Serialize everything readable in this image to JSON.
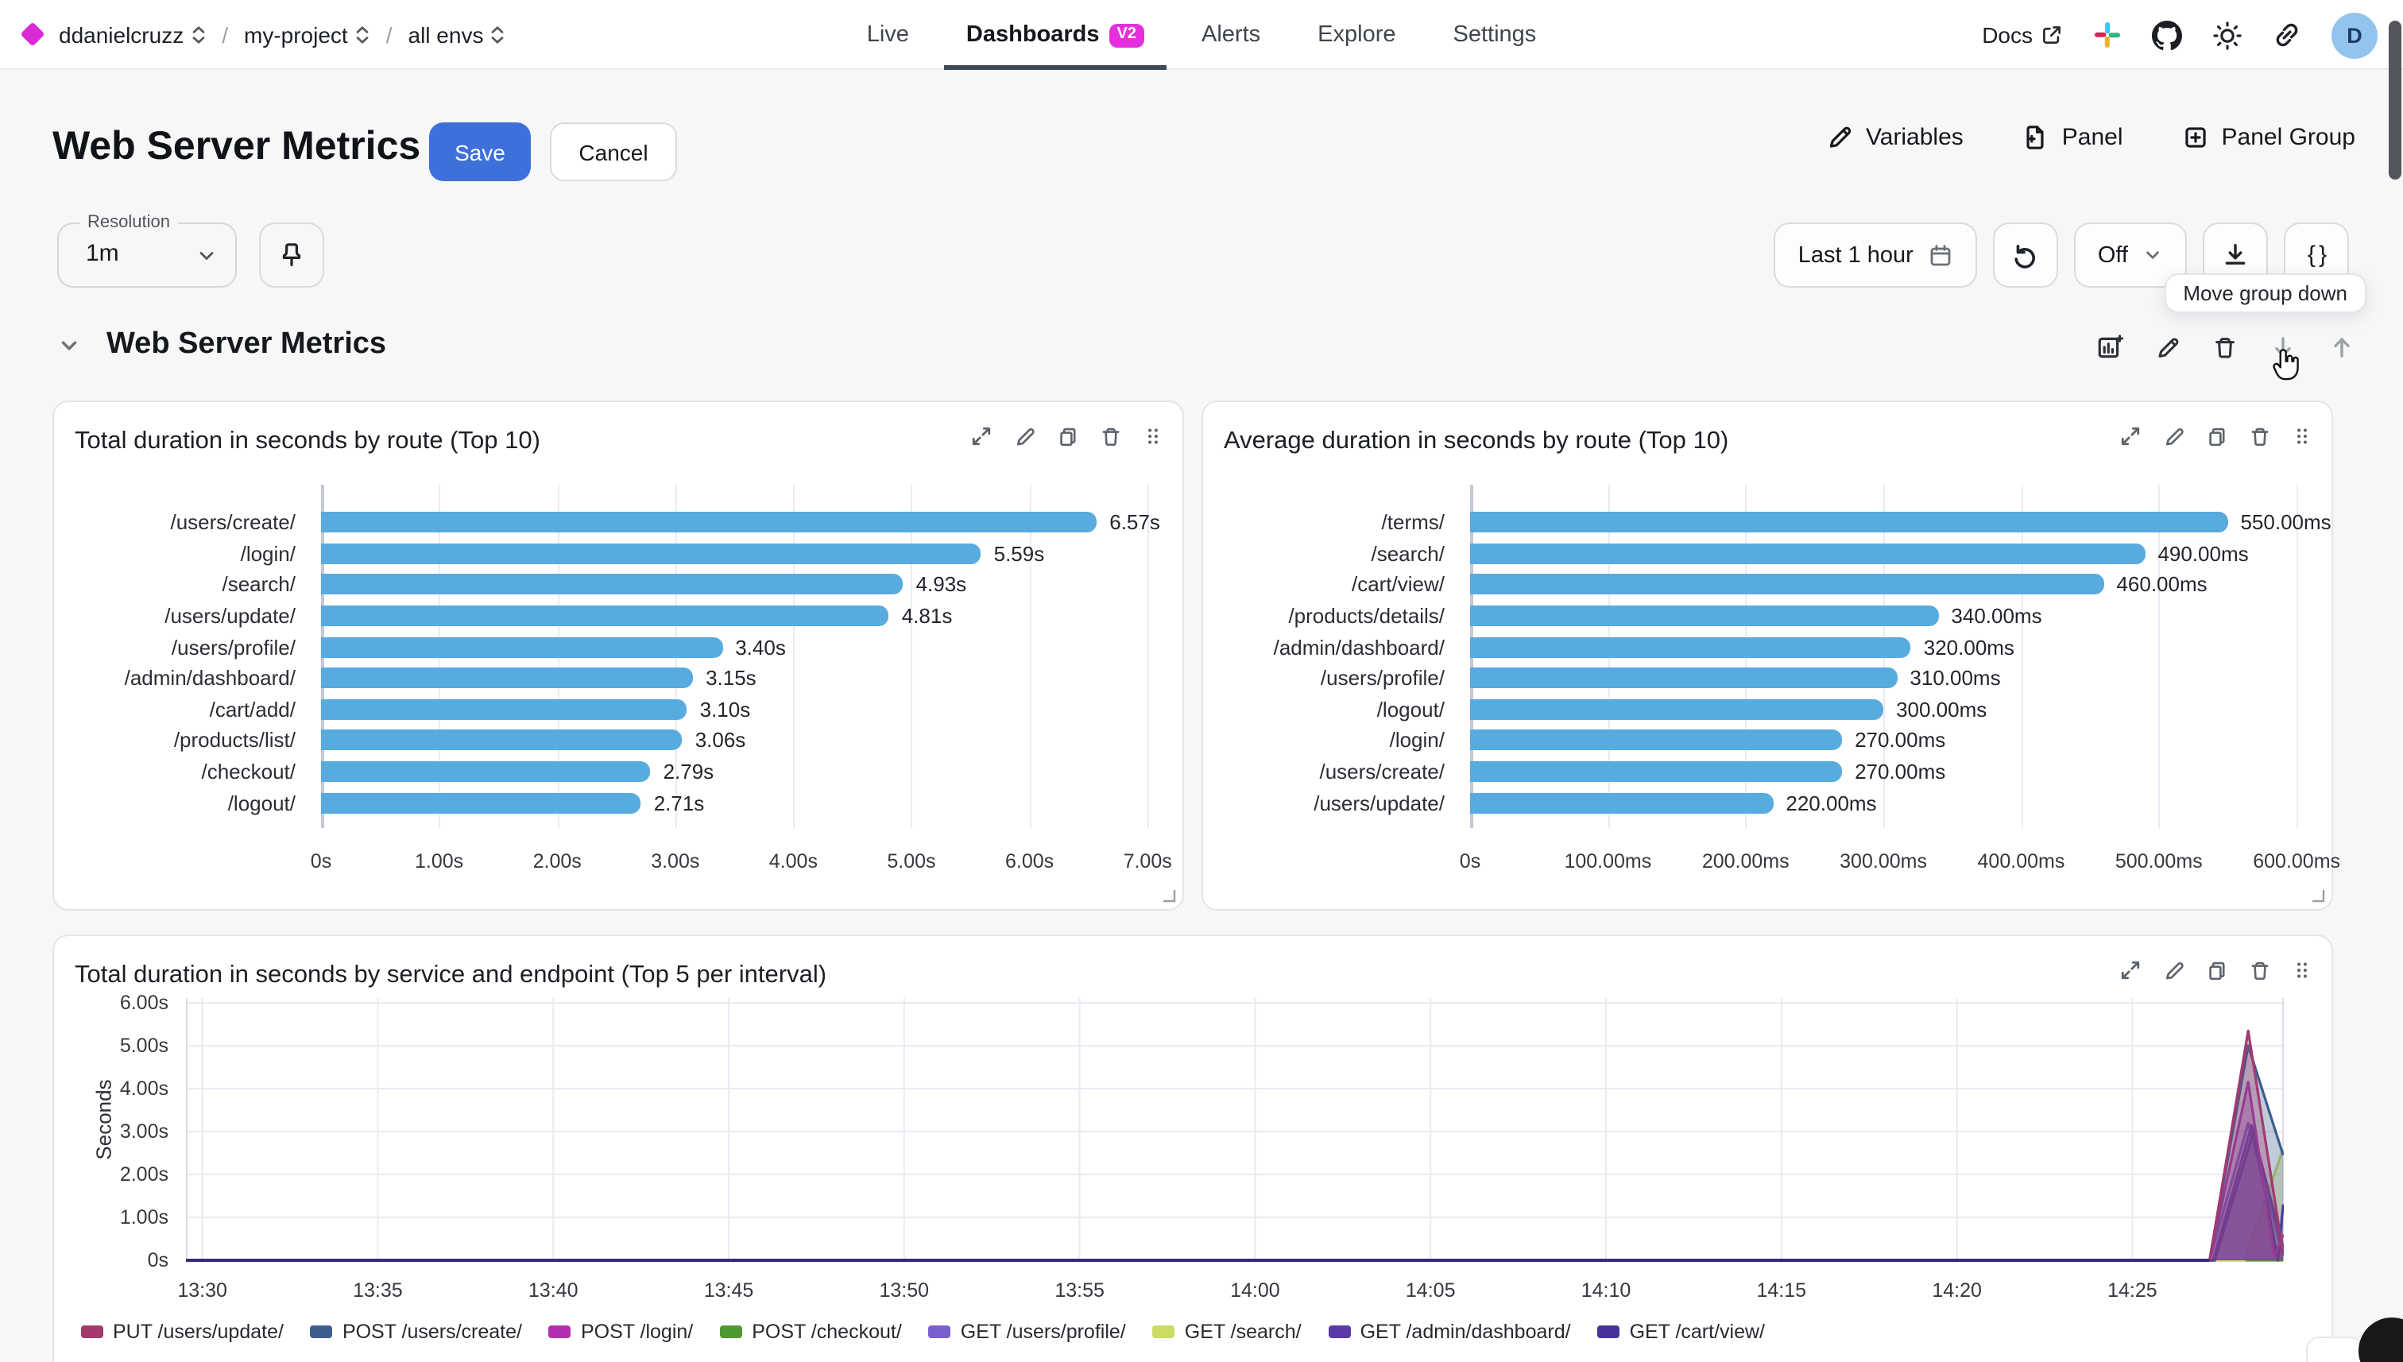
{
  "topbar": {
    "breadcrumb": [
      "ddanielcruzz",
      "my-project",
      "all envs"
    ],
    "nav": [
      {
        "label": "Live"
      },
      {
        "label": "Dashboards",
        "badge": "V2"
      },
      {
        "label": "Alerts"
      },
      {
        "label": "Explore"
      },
      {
        "label": "Settings"
      }
    ],
    "docs_label": "Docs",
    "avatar_letter": "D"
  },
  "header": {
    "title": "Web Server Metrics",
    "save": "Save",
    "cancel": "Cancel",
    "variables": "Variables",
    "panel": "Panel",
    "panel_group": "Panel Group"
  },
  "controls": {
    "resolution_label": "Resolution",
    "resolution_value": "1m",
    "time_range": "Last 1 hour",
    "auto_refresh": "Off",
    "braces": "{ }",
    "tooltip": "Move group down"
  },
  "group": {
    "title": "Web Server Metrics"
  },
  "colors": {
    "accent_blue": "#3e70da",
    "brand_magenta": "#d92ad4",
    "bar_blue": "#57abdf"
  },
  "chart_data": [
    {
      "type": "bar",
      "orientation": "horizontal",
      "title": "Total duration in seconds by route (Top 10)",
      "categories": [
        "/users/create/",
        "/login/",
        "/search/",
        "/users/update/",
        "/users/profile/",
        "/admin/dashboard/",
        "/cart/add/",
        "/products/list/",
        "/checkout/",
        "/logout/"
      ],
      "values": [
        6.57,
        5.59,
        4.93,
        4.81,
        3.4,
        3.15,
        3.1,
        3.06,
        2.79,
        2.71
      ],
      "value_labels": [
        "6.57s",
        "5.59s",
        "4.93s",
        "4.81s",
        "3.40s",
        "3.15s",
        "3.10s",
        "3.06s",
        "2.79s",
        "2.71s"
      ],
      "xticks": [
        {
          "v": 0,
          "l": "0s"
        },
        {
          "v": 1,
          "l": "1.00s"
        },
        {
          "v": 2,
          "l": "2.00s"
        },
        {
          "v": 3,
          "l": "3.00s"
        },
        {
          "v": 4,
          "l": "4.00s"
        },
        {
          "v": 5,
          "l": "5.00s"
        },
        {
          "v": 6,
          "l": "6.00s"
        },
        {
          "v": 7,
          "l": "7.00s"
        }
      ],
      "tickmax": 7,
      "bar_color": "#57abdf",
      "grid": true
    },
    {
      "type": "bar",
      "orientation": "horizontal",
      "title": "Average duration in seconds by route (Top 10)",
      "categories": [
        "/terms/",
        "/search/",
        "/cart/view/",
        "/products/details/",
        "/admin/dashboard/",
        "/users/profile/",
        "/logout/",
        "/login/",
        "/users/create/",
        "/users/update/"
      ],
      "values": [
        550,
        490,
        460,
        340,
        320,
        310,
        300,
        270,
        270,
        220
      ],
      "value_labels": [
        "550.00ms",
        "490.00ms",
        "460.00ms",
        "340.00ms",
        "320.00ms",
        "310.00ms",
        "300.00ms",
        "270.00ms",
        "270.00ms",
        "220.00ms"
      ],
      "xticks": [
        {
          "v": 0,
          "l": "0s"
        },
        {
          "v": 100,
          "l": "100.00ms"
        },
        {
          "v": 200,
          "l": "200.00ms"
        },
        {
          "v": 300,
          "l": "300.00ms"
        },
        {
          "v": 400,
          "l": "400.00ms"
        },
        {
          "v": 500,
          "l": "500.00ms"
        },
        {
          "v": 600,
          "l": "600.00ms"
        }
      ],
      "tickmax": 600,
      "bar_color": "#57abdf",
      "grid": true
    },
    {
      "type": "line",
      "title": "Total duration in seconds by service and endpoint (Top 5 per interval)",
      "ylabel": "Seconds",
      "yticks": [
        "0s",
        "1.00s",
        "2.00s",
        "3.00s",
        "4.00s",
        "5.00s",
        "6.00s"
      ],
      "ymax": 6,
      "xticks": [
        {
          "m": 0,
          "l": "13:30"
        },
        {
          "m": 5,
          "l": "13:35"
        },
        {
          "m": 10,
          "l": "13:40"
        },
        {
          "m": 15,
          "l": "13:45"
        },
        {
          "m": 20,
          "l": "13:50"
        },
        {
          "m": 25,
          "l": "13:55"
        },
        {
          "m": 30,
          "l": "14:00"
        },
        {
          "m": 35,
          "l": "14:05"
        },
        {
          "m": 40,
          "l": "14:10"
        },
        {
          "m": 45,
          "l": "14:15"
        },
        {
          "m": 50,
          "l": "14:20"
        },
        {
          "m": 55,
          "l": "14:25"
        }
      ],
      "x_minutes_max": 59.3,
      "grid": true,
      "legend_position": "bottom",
      "series": [
        {
          "name": "PUT /users/update/",
          "color": "#a23a6e",
          "points": [
            [
              0,
              0
            ],
            [
              57.2,
              0
            ],
            [
              58.3,
              5.35
            ],
            [
              59.3,
              0.15
            ]
          ]
        },
        {
          "name": "POST /users/create/",
          "color": "#3d5c8e",
          "points": [
            [
              0,
              0
            ],
            [
              57.2,
              0
            ],
            [
              58.3,
              5.0
            ],
            [
              59.3,
              2.45
            ]
          ]
        },
        {
          "name": "POST /login/",
          "color": "#b42eb0",
          "points": [
            [
              0,
              0
            ],
            [
              57.2,
              0
            ],
            [
              58.3,
              4.15
            ],
            [
              59.05,
              0.1
            ],
            [
              59.3,
              0.6
            ]
          ]
        },
        {
          "name": "POST /checkout/",
          "color": "#4f9a30",
          "points": [
            [
              0,
              0
            ],
            [
              59.3,
              0
            ]
          ]
        },
        {
          "name": "GET /users/profile/",
          "color": "#7a5fd0",
          "points": [
            [
              0,
              0
            ],
            [
              57.2,
              0
            ],
            [
              58.3,
              3.2
            ],
            [
              59.3,
              0.1
            ]
          ]
        },
        {
          "name": "GET /search/",
          "color": "#cbdb63",
          "points": [
            [
              0,
              0
            ],
            [
              58.2,
              0
            ],
            [
              59.3,
              2.6
            ]
          ]
        },
        {
          "name": "GET /admin/dashboard/",
          "color": "#5b3aa8",
          "points": [
            [
              0,
              0
            ],
            [
              57.3,
              0
            ],
            [
              58.4,
              3.15
            ],
            [
              59.3,
              0.3
            ]
          ]
        },
        {
          "name": "GET /cart/view/",
          "color": "#46329a",
          "points": [
            [
              0,
              0
            ],
            [
              57.35,
              0
            ],
            [
              58.45,
              3.0
            ],
            [
              59.15,
              0
            ],
            [
              59.3,
              1.3
            ]
          ]
        }
      ]
    }
  ]
}
